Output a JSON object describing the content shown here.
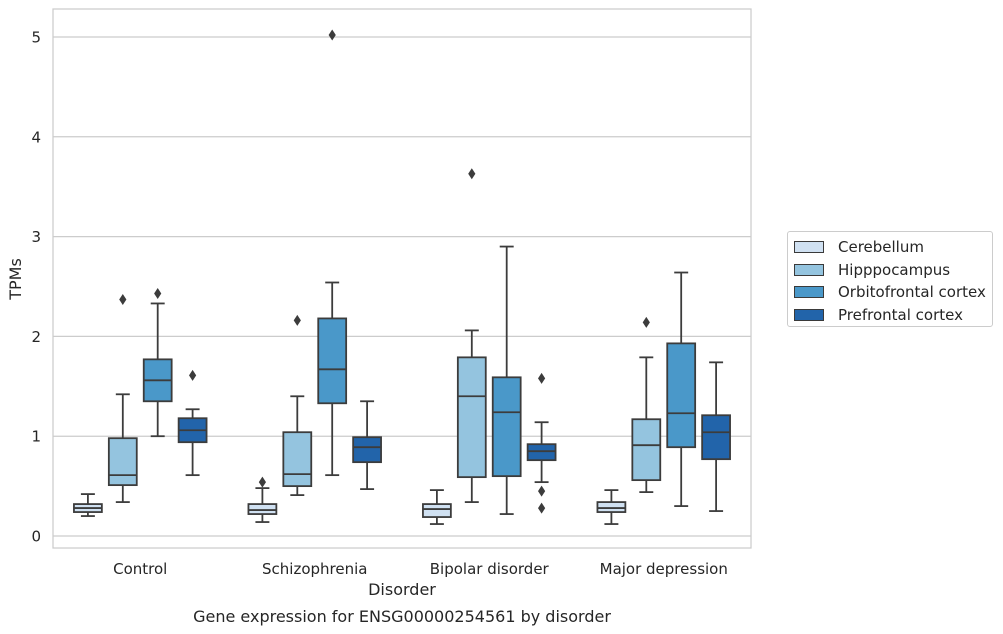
{
  "chart_data": {
    "type": "box",
    "title": "Gene expression for ENSG00000254561 by disorder",
    "xlabel": "Disorder",
    "ylabel": "TPMs",
    "categories": [
      "Control",
      "Schizophrenia",
      "Bipolar disorder",
      "Major depression"
    ],
    "yticks": [
      "0",
      "1",
      "2",
      "3",
      "4",
      "5"
    ],
    "ylim": [
      -0.12,
      5.28
    ],
    "grid": "horizontal",
    "legend_position": "right",
    "series": [
      {
        "name": "Cerebellum",
        "color": "#d0e1f2",
        "boxes": [
          {
            "whislo": 0.2,
            "q1": 0.24,
            "med": 0.28,
            "q3": 0.32,
            "whishi": 0.42,
            "fliers": []
          },
          {
            "whislo": 0.14,
            "q1": 0.22,
            "med": 0.26,
            "q3": 0.32,
            "whishi": 0.48,
            "fliers": [
              0.54
            ]
          },
          {
            "whislo": 0.12,
            "q1": 0.19,
            "med": 0.27,
            "q3": 0.32,
            "whishi": 0.46,
            "fliers": []
          },
          {
            "whislo": 0.12,
            "q1": 0.24,
            "med": 0.28,
            "q3": 0.34,
            "whishi": 0.46,
            "fliers": []
          }
        ]
      },
      {
        "name": "Hipppocampus",
        "color": "#94c4df",
        "boxes": [
          {
            "whislo": 0.34,
            "q1": 0.51,
            "med": 0.61,
            "q3": 0.98,
            "whishi": 1.42,
            "fliers": [
              2.37
            ]
          },
          {
            "whislo": 0.41,
            "q1": 0.5,
            "med": 0.62,
            "q3": 1.04,
            "whishi": 1.4,
            "fliers": [
              2.16
            ]
          },
          {
            "whislo": 0.34,
            "q1": 0.59,
            "med": 1.4,
            "q3": 1.79,
            "whishi": 2.06,
            "fliers": [
              3.63
            ]
          },
          {
            "whislo": 0.44,
            "q1": 0.56,
            "med": 0.91,
            "q3": 1.17,
            "whishi": 1.79,
            "fliers": [
              2.14
            ]
          }
        ]
      },
      {
        "name": "Orbitofrontal cortex",
        "color": "#4a98c9",
        "boxes": [
          {
            "whislo": 1.0,
            "q1": 1.35,
            "med": 1.56,
            "q3": 1.77,
            "whishi": 2.33,
            "fliers": [
              2.43
            ]
          },
          {
            "whislo": 0.61,
            "q1": 1.33,
            "med": 1.67,
            "q3": 2.18,
            "whishi": 2.54,
            "fliers": [
              5.02
            ]
          },
          {
            "whislo": 0.22,
            "q1": 0.6,
            "med": 1.24,
            "q3": 1.59,
            "whishi": 2.9,
            "fliers": []
          },
          {
            "whislo": 0.3,
            "q1": 0.89,
            "med": 1.23,
            "q3": 1.93,
            "whishi": 2.64,
            "fliers": []
          }
        ]
      },
      {
        "name": "Prefrontal cortex",
        "color": "#2264aa",
        "boxes": [
          {
            "whislo": 0.61,
            "q1": 0.94,
            "med": 1.06,
            "q3": 1.18,
            "whishi": 1.27,
            "fliers": [
              1.61
            ]
          },
          {
            "whislo": 0.47,
            "q1": 0.74,
            "med": 0.89,
            "q3": 0.99,
            "whishi": 1.35,
            "fliers": []
          },
          {
            "whislo": 0.54,
            "q1": 0.76,
            "med": 0.85,
            "q3": 0.92,
            "whishi": 1.14,
            "fliers": [
              1.58,
              0.45,
              0.28
            ]
          },
          {
            "whislo": 0.25,
            "q1": 0.77,
            "med": 1.04,
            "q3": 1.21,
            "whishi": 1.74,
            "fliers": []
          }
        ]
      }
    ]
  }
}
